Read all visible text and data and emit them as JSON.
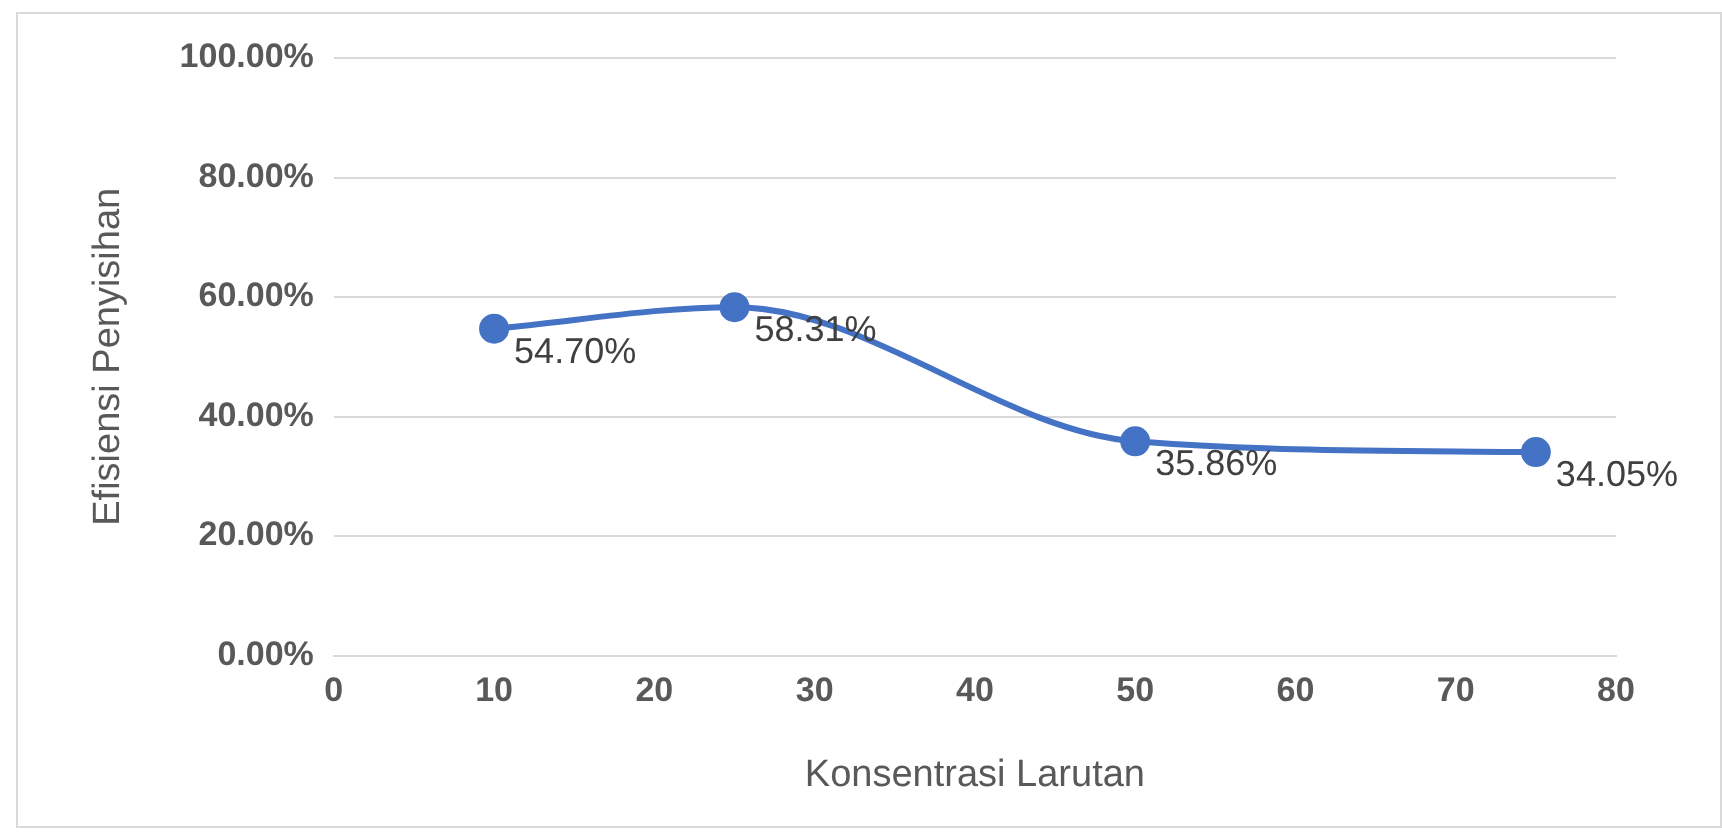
{
  "chart_data": {
    "type": "line",
    "xlabel": "Konsentrasi Larutan",
    "ylabel": "Efisiensi Penyisihan",
    "x": [
      10,
      25,
      50,
      75
    ],
    "series": [
      {
        "color": "#4472c4",
        "values": [
          54.7,
          58.31,
          35.86,
          34.05
        ],
        "value_labels": [
          "54.70%",
          "58.31%",
          "35.86%",
          "34.05%"
        ]
      }
    ],
    "xlim": [
      0,
      80
    ],
    "xticks": [
      0,
      10,
      20,
      30,
      40,
      50,
      60,
      70,
      80
    ],
    "ylim": [
      0,
      100
    ],
    "yticks": [
      {
        "value": 0,
        "label": "0.00%"
      },
      {
        "value": 20,
        "label": "20.00%"
      },
      {
        "value": 40,
        "label": "40.00%"
      },
      {
        "value": 60,
        "label": "60.00%"
      },
      {
        "value": 80,
        "label": "80.00%"
      },
      {
        "value": 100,
        "label": "100.00%"
      }
    ],
    "grid": "y",
    "marker": "circle",
    "line_style": "solid",
    "legend": false
  }
}
